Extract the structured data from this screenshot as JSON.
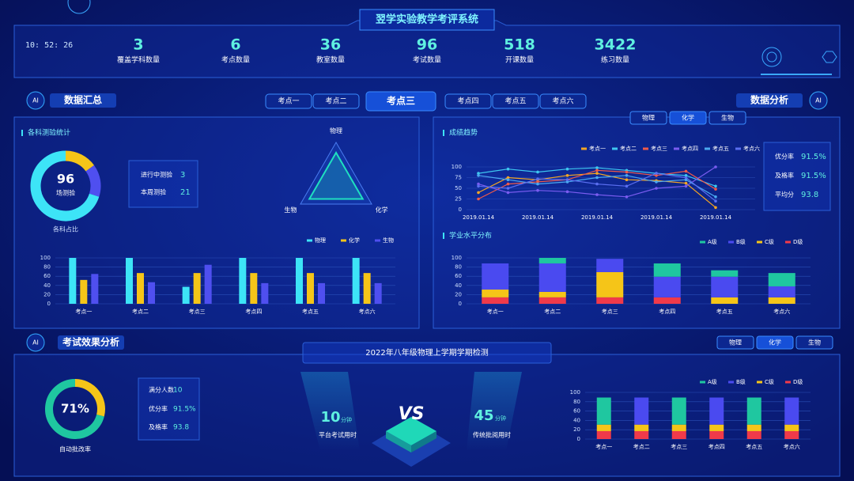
{
  "header": {
    "title": "翌学实验教学考评系统",
    "time": "10: 52: 26"
  },
  "stats": [
    {
      "value": 3,
      "label": "覆盖学科数量"
    },
    {
      "value": 6,
      "label": "考点数量"
    },
    {
      "value": 36,
      "label": "教室数量"
    },
    {
      "value": 96,
      "label": "考试数量"
    },
    {
      "value": 518,
      "label": "开课数量"
    },
    {
      "value": 3422,
      "label": "练习数量"
    }
  ],
  "site_tabs": {
    "items": [
      "考点一",
      "考点二",
      "考点三",
      "考点四",
      "考点五",
      "考点六"
    ],
    "active": 2
  },
  "summary": {
    "badge": "AI",
    "title": "数据汇总",
    "subtitle": "各科测验统计",
    "donut": {
      "type": "pie",
      "values": [
        15,
        15,
        70
      ],
      "colors": [
        "#f5c518",
        "#4f4ff0",
        "#3de4f7"
      ],
      "center_value": 96,
      "center_label": "场测验",
      "caption": "各科占比"
    },
    "test_box": [
      {
        "label": "进行中测验",
        "value": 3
      },
      {
        "label": "本周测验",
        "value": 21
      }
    ],
    "radar": {
      "type": "radar",
      "categories": [
        "物理",
        "化学",
        "生物"
      ],
      "values": [
        75,
        75,
        75
      ],
      "ylim": [
        0,
        100
      ],
      "color": "#1fe0c0"
    },
    "bar_chart": {
      "type": "bar",
      "categories": [
        "考点一",
        "考点二",
        "考点三",
        "考点四",
        "考点五",
        "考点六"
      ],
      "series": [
        {
          "name": "物理",
          "color": "#3de4f7",
          "values": [
            100,
            100,
            37,
            100,
            100,
            100
          ]
        },
        {
          "name": "化学",
          "color": "#f5c518",
          "values": [
            52,
            67,
            67,
            67,
            67,
            67
          ]
        },
        {
          "name": "生物",
          "color": "#4f4ff0",
          "values": [
            65,
            47,
            85,
            45,
            45,
            45
          ]
        }
      ],
      "ylim": [
        0,
        100
      ],
      "yticks": [
        0,
        20,
        40,
        60,
        80,
        100
      ]
    }
  },
  "analysis": {
    "badge": "AI",
    "title": "数据分析",
    "subject_tabs": {
      "items": [
        "物理",
        "化学",
        "生物"
      ],
      "active": 1
    },
    "trend_title": "成绩趋势",
    "trend": {
      "type": "line",
      "categories": [
        "2019.01.14",
        null,
        "2019.01.14",
        null,
        "2019.01.14",
        null,
        "2019.01.14",
        null,
        "2019.01.14"
      ],
      "series": [
        {
          "name": "考点一",
          "color": "#f5a623",
          "values": [
            40,
            75,
            70,
            80,
            85,
            70,
            68,
            62,
            5
          ]
        },
        {
          "name": "考点二",
          "color": "#3ec7f0",
          "values": [
            85,
            95,
            88,
            95,
            98,
            92,
            85,
            80,
            55
          ]
        },
        {
          "name": "考点三",
          "color": "#f05a4a",
          "values": [
            25,
            60,
            65,
            70,
            92,
            88,
            80,
            90,
            48
          ]
        },
        {
          "name": "考点四",
          "color": "#7a5cf0",
          "values": [
            60,
            40,
            45,
            42,
            35,
            30,
            50,
            55,
            100
          ]
        },
        {
          "name": "考点五",
          "color": "#4aa8f0",
          "values": [
            80,
            70,
            60,
            65,
            75,
            80,
            65,
            70,
            30
          ]
        },
        {
          "name": "考点六",
          "color": "#5a6ef0",
          "values": [
            55,
            50,
            72,
            70,
            60,
            55,
            85,
            75,
            20
          ]
        }
      ],
      "ylim": [
        0,
        100
      ],
      "yticks": [
        0,
        25,
        50,
        75,
        100
      ]
    },
    "rates": [
      {
        "label": "优分率",
        "value": "91.5%"
      },
      {
        "label": "及格率",
        "value": "91.5%"
      },
      {
        "label": "平均分",
        "value": "93.8"
      }
    ],
    "level_title": "学业水平分布",
    "level": {
      "type": "stacked_bar",
      "categories": [
        "考点一",
        "考点二",
        "考点三",
        "考点四",
        "考点五",
        "考点六"
      ],
      "series": [
        {
          "name": "A级",
          "color": "#1fc7a0",
          "values": [
            0,
            12,
            0,
            29,
            14,
            29
          ]
        },
        {
          "name": "B级",
          "color": "#4a4af0",
          "values": [
            57,
            62,
            29,
            45,
            45,
            24
          ]
        },
        {
          "name": "C级",
          "color": "#f5c518",
          "values": [
            17,
            12,
            55,
            0,
            14,
            14
          ]
        },
        {
          "name": "D级",
          "color": "#f03a4a",
          "values": [
            14,
            14,
            14,
            14,
            0,
            0
          ]
        }
      ],
      "ylim": [
        0,
        100
      ],
      "yticks": [
        0,
        20,
        40,
        60,
        80,
        100
      ]
    }
  },
  "effect": {
    "badge": "AI",
    "title": "考试效果分析",
    "subject_tabs": {
      "items": [
        "物理",
        "化学",
        "生物"
      ],
      "active": 1
    },
    "exam_title": "2022年八年级物理上学期学期检测",
    "donut": {
      "type": "pie",
      "values": [
        29,
        71
      ],
      "colors": [
        "#f5c518",
        "#1fc7a0"
      ],
      "center_label": "71%",
      "caption": "自动批改率"
    },
    "stats_box": [
      {
        "label": "满分人数",
        "value": "10"
      },
      {
        "label": "优分率",
        "value": "91.5%"
      },
      {
        "label": "及格率",
        "value": "93.8"
      }
    ],
    "vs": {
      "label": "VS",
      "left": {
        "value": 10,
        "unit": "分钟",
        "label": "平台考试用时"
      },
      "right": {
        "value": 45,
        "unit": "分钟",
        "label": "传统批阅用时"
      }
    },
    "level": {
      "type": "stacked_bar",
      "categories": [
        "考点一",
        "考点二",
        "考点三",
        "考点四",
        "考点五",
        "考点六"
      ],
      "series": [
        {
          "name": "A级",
          "color": "#1fc7a0",
          "values": [
            58,
            0,
            58,
            0,
            58,
            0
          ]
        },
        {
          "name": "B级",
          "color": "#4a4af0",
          "values": [
            0,
            58,
            0,
            58,
            0,
            58
          ]
        },
        {
          "name": "C级",
          "color": "#f5c518",
          "values": [
            14,
            14,
            14,
            14,
            14,
            14
          ]
        },
        {
          "name": "D级",
          "color": "#f03a4a",
          "values": [
            17,
            17,
            17,
            17,
            17,
            17
          ]
        }
      ],
      "ylim": [
        0,
        100
      ],
      "yticks": [
        0,
        20,
        40,
        60,
        80,
        100
      ]
    }
  }
}
